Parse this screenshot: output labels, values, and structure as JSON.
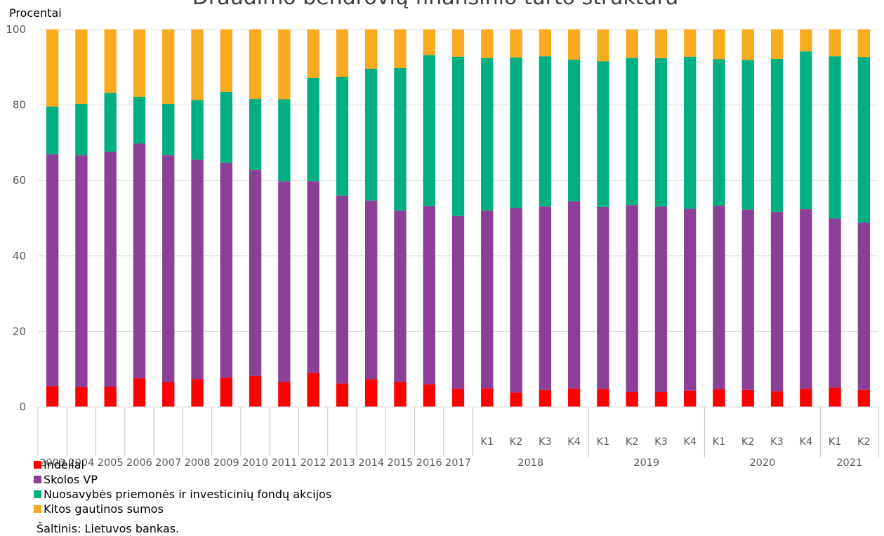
{
  "chart_data": {
    "type": "bar",
    "stacked": true,
    "title": "Draudimo bendrovių finansinio turto struktūra",
    "ylabel": "Procentai",
    "ylim": [
      0,
      100
    ],
    "yticks": [
      0,
      20,
      40,
      60,
      80,
      100
    ],
    "grid": true,
    "legend_position": "bottom-left",
    "categories": [
      "2003",
      "2004",
      "2005",
      "2006",
      "2007",
      "2008",
      "2009",
      "2010",
      "2011",
      "2012",
      "2013",
      "2014",
      "2015",
      "2016",
      "2017",
      "K1",
      "K2",
      "K3",
      "K4",
      "K1",
      "K2",
      "K3",
      "K4",
      "K1",
      "K2",
      "K3",
      "K4",
      "K1",
      "K2"
    ],
    "category_groups": [
      {
        "label": "2003",
        "count": 1
      },
      {
        "label": "2004",
        "count": 1
      },
      {
        "label": "2005",
        "count": 1
      },
      {
        "label": "2006",
        "count": 1
      },
      {
        "label": "2007",
        "count": 1
      },
      {
        "label": "2008",
        "count": 1
      },
      {
        "label": "2009",
        "count": 1
      },
      {
        "label": "2010",
        "count": 1
      },
      {
        "label": "2011",
        "count": 1
      },
      {
        "label": "2012",
        "count": 1
      },
      {
        "label": "2013",
        "count": 1
      },
      {
        "label": "2014",
        "count": 1
      },
      {
        "label": "2015",
        "count": 1
      },
      {
        "label": "2016",
        "count": 1
      },
      {
        "label": "2017",
        "count": 1
      },
      {
        "label": "2018",
        "count": 4
      },
      {
        "label": "2019",
        "count": 4
      },
      {
        "label": "2020",
        "count": 4
      },
      {
        "label": "2021",
        "count": 2
      }
    ],
    "series": [
      {
        "name": "Indėliai",
        "color": "#ff0000",
        "values": [
          5.5,
          5.2,
          5.3,
          7.6,
          6.6,
          7.4,
          7.7,
          8.2,
          6.6,
          9.0,
          6.2,
          7.4,
          6.6,
          6.0,
          4.8,
          4.9,
          3.8,
          4.5,
          4.9,
          4.8,
          3.9,
          3.9,
          4.3,
          4.7,
          4.5,
          4.1,
          4.8,
          5.1,
          4.5
        ]
      },
      {
        "name": "Skolos VP",
        "color": "#8b3f96",
        "values": [
          61.4,
          61.5,
          62.3,
          62.2,
          60.1,
          58.1,
          57.0,
          54.6,
          53.2,
          50.8,
          49.8,
          47.3,
          45.4,
          47.2,
          45.8,
          47.1,
          48.9,
          48.6,
          49.6,
          48.2,
          49.6,
          49.2,
          48.2,
          48.6,
          47.8,
          47.6,
          47.6,
          44.8,
          44.3
        ]
      },
      {
        "name": "Nuosavybės priemonės ir investicinių fondų akcijos",
        "color": "#00af80",
        "values": [
          12.7,
          13.6,
          15.6,
          12.4,
          13.6,
          15.8,
          18.8,
          18.8,
          21.7,
          27.4,
          31.4,
          34.9,
          37.8,
          40.0,
          42.2,
          40.4,
          39.9,
          39.8,
          37.5,
          38.6,
          39.0,
          39.3,
          40.3,
          38.8,
          39.6,
          40.5,
          41.8,
          43.0,
          43.9
        ]
      },
      {
        "name": "Kitos gautinos sumos",
        "color": "#f9ab1f",
        "values": [
          20.4,
          19.7,
          16.8,
          17.8,
          19.7,
          18.7,
          16.5,
          18.4,
          18.5,
          12.8,
          12.6,
          10.4,
          10.2,
          6.8,
          7.2,
          7.6,
          7.4,
          7.1,
          8.0,
          8.4,
          7.5,
          7.6,
          7.2,
          7.9,
          8.1,
          7.8,
          5.8,
          7.1,
          7.3
        ]
      }
    ],
    "source": "Šaltinis: Lietuvos bankas."
  }
}
